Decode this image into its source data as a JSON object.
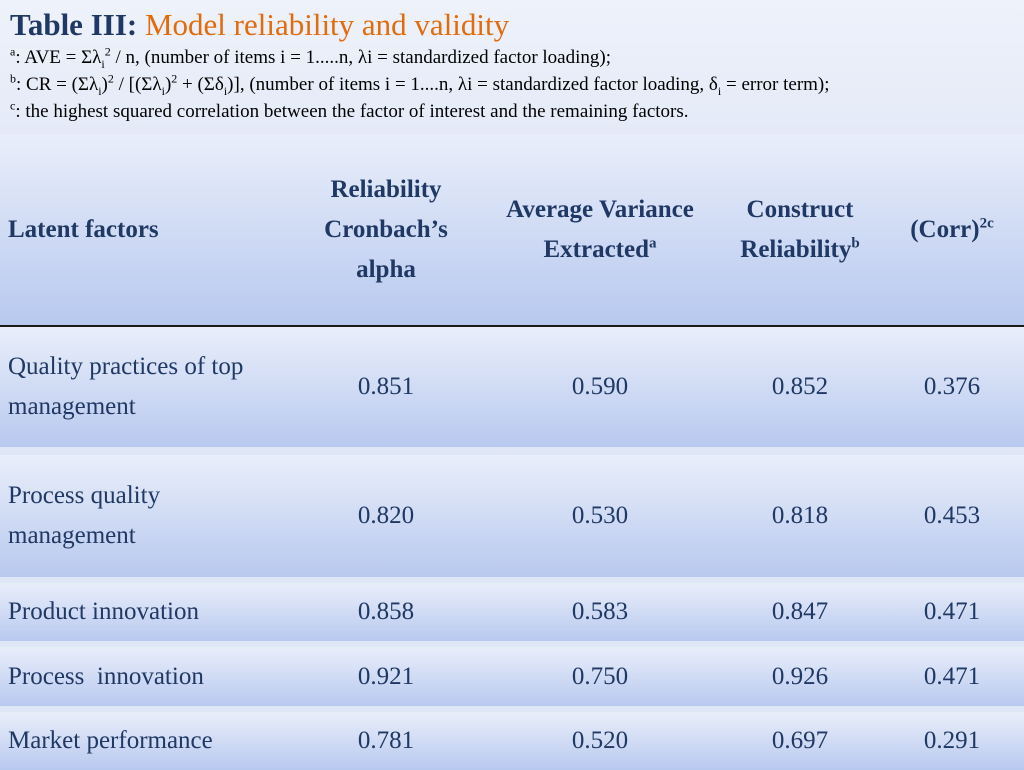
{
  "title": {
    "label": "Table III:",
    "text": "Model reliability and validity"
  },
  "notes": {
    "a_mark": "a",
    "a_p1": ": AVE = Σλ",
    "a_sub": "i",
    "a_sup": "2",
    "a_p2": " / n, (number of items i = 1.....n, λi = standardized factor loading);",
    "b_mark": "b",
    "b_p1": ": CR = (Σλ",
    "b_sub1": "i",
    "b_p2": ")",
    "b_sup1": "2",
    "b_p3": " / [(Σλ",
    "b_sub2": "i",
    "b_p4": ")",
    "b_sup2": "2",
    "b_p5": " + (Σδ",
    "b_sub3": "i",
    "b_p6": ")], (number of items i = 1....n, λi = standardized factor loading, δ",
    "b_sub4": "i",
    "b_p7": " = error term);",
    "c_mark": "c",
    "c_text": ": the highest squared correlation between the factor of interest and the remaining factors."
  },
  "headers": {
    "latent": "Latent factors",
    "reliability_l1": "Reliability",
    "reliability_l2": "Cronbach’s",
    "reliability_l3": "alpha",
    "ave_l1": "Average Variance",
    "ave_l2": "Extracted",
    "ave_sup": "a",
    "cr_l1": "Construct",
    "cr_l2": "Reliability",
    "cr_sup": "b",
    "corr": "(Corr)",
    "corr_sup": "2c"
  },
  "rows": [
    {
      "factor_l1": "Quality practices of top",
      "factor_l2": "management",
      "alpha": "0.851",
      "ave": "0.590",
      "cr": "0.852",
      "corr": "0.376"
    },
    {
      "factor_l1": "Process quality",
      "factor_l2": "management",
      "alpha": "0.820",
      "ave": "0.530",
      "cr": "0.818",
      "corr": "0.453"
    },
    {
      "factor_l1": "Product innovation",
      "factor_l2": "",
      "alpha": "0.858",
      "ave": "0.583",
      "cr": "0.847",
      "corr": "0.471"
    },
    {
      "factor_l1": "Process  innovation",
      "factor_l2": "",
      "alpha": "0.921",
      "ave": "0.750",
      "cr": "0.926",
      "corr": "0.471"
    },
    {
      "factor_l1": "Market performance",
      "factor_l2": "",
      "alpha": "0.781",
      "ave": "0.520",
      "cr": "0.697",
      "corr": "0.291"
    }
  ],
  "colors": {
    "title_label": "#1f3864",
    "title_text": "#e36c0a",
    "table_text": "#1f3864"
  }
}
